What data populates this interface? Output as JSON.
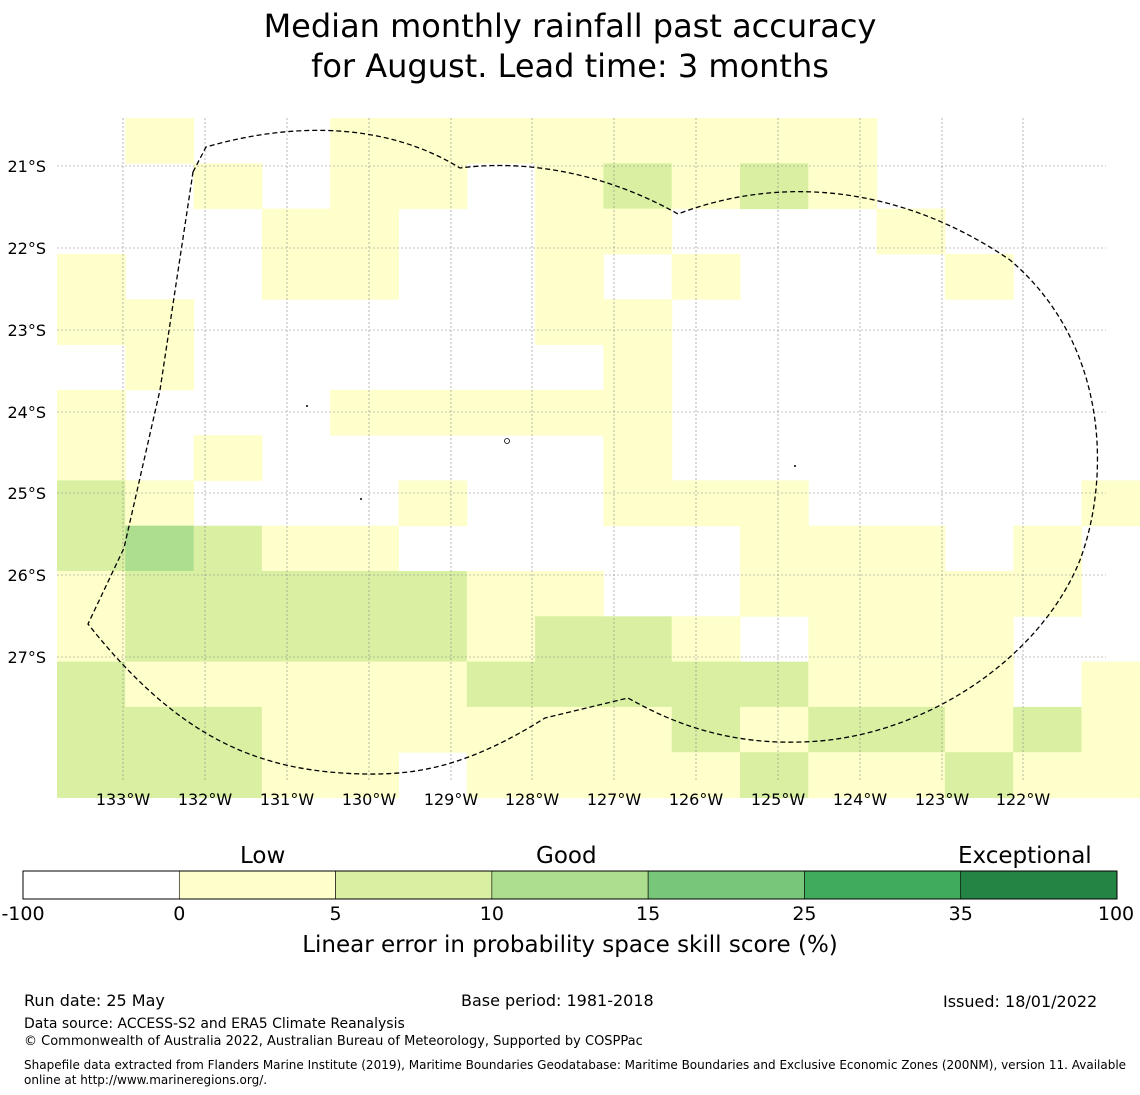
{
  "title": {
    "line1": "Median monthly rainfall past accuracy",
    "line2": "for August. Lead time: 3 months"
  },
  "map": {
    "lon_labels": [
      "133°W",
      "132°W",
      "131°W",
      "130°W",
      "129°W",
      "128°W",
      "127°W",
      "126°W",
      "125°W",
      "124°W",
      "123°W",
      "122°W"
    ],
    "lat_labels": [
      "21°S",
      "22°S",
      "23°S",
      "24°S",
      "25°S",
      "26°S",
      "27°S"
    ],
    "grid_columns": 16,
    "grid_rows": 15,
    "cell_classes_legend": "0 = none/below 0, 1 = 0-5, 2 = 5-10, 3 = 10-15",
    "cells": [
      [
        0,
        1,
        0,
        0,
        1,
        1,
        1,
        1,
        1,
        1,
        1,
        1,
        0,
        0,
        0,
        0
      ],
      [
        0,
        0,
        1,
        0,
        1,
        1,
        0,
        1,
        2,
        1,
        2,
        1,
        0,
        0,
        0,
        0
      ],
      [
        0,
        0,
        0,
        1,
        1,
        0,
        0,
        1,
        1,
        0,
        0,
        0,
        1,
        0,
        0,
        0
      ],
      [
        1,
        0,
        0,
        1,
        1,
        0,
        0,
        1,
        0,
        1,
        0,
        0,
        0,
        1,
        0,
        0
      ],
      [
        1,
        1,
        0,
        0,
        0,
        0,
        0,
        1,
        1,
        0,
        0,
        0,
        0,
        0,
        0,
        0
      ],
      [
        0,
        1,
        0,
        0,
        0,
        0,
        0,
        0,
        1,
        0,
        0,
        0,
        0,
        0,
        0,
        0
      ],
      [
        1,
        0,
        0,
        0,
        1,
        1,
        1,
        1,
        1,
        0,
        0,
        0,
        0,
        0,
        0,
        0
      ],
      [
        1,
        0,
        1,
        0,
        0,
        0,
        0,
        0,
        1,
        0,
        0,
        0,
        0,
        0,
        0,
        0
      ],
      [
        2,
        1,
        0,
        0,
        0,
        1,
        0,
        0,
        1,
        1,
        1,
        0,
        0,
        0,
        0,
        1
      ],
      [
        2,
        3,
        2,
        1,
        1,
        0,
        0,
        0,
        0,
        0,
        1,
        1,
        1,
        0,
        1,
        0
      ],
      [
        1,
        2,
        2,
        2,
        2,
        2,
        1,
        1,
        0,
        0,
        1,
        1,
        1,
        1,
        1,
        0
      ],
      [
        1,
        2,
        2,
        2,
        2,
        2,
        1,
        2,
        2,
        1,
        0,
        1,
        1,
        1,
        0,
        0
      ],
      [
        2,
        1,
        1,
        1,
        1,
        1,
        2,
        2,
        2,
        2,
        2,
        1,
        1,
        1,
        0,
        1
      ],
      [
        2,
        2,
        2,
        1,
        1,
        1,
        1,
        1,
        1,
        2,
        1,
        2,
        2,
        1,
        2,
        1
      ],
      [
        2,
        2,
        2,
        1,
        1,
        0,
        1,
        1,
        1,
        1,
        2,
        1,
        1,
        2,
        1,
        1
      ]
    ]
  },
  "colorbar": {
    "categories": [
      "Low",
      "Good",
      "Exceptional"
    ],
    "ticks": [
      "-100",
      "0",
      "5",
      "10",
      "15",
      "25",
      "35",
      "100"
    ],
    "colors": [
      "#ffffff",
      "#ffffcc",
      "#d9f0a3",
      "#addd8e",
      "#78c679",
      "#41ab5d",
      "#238443"
    ],
    "label": "Linear error in probability space skill score (%)"
  },
  "footer": {
    "run_date": "Run date: 25 May",
    "base_period": "Base period: 1981-2018",
    "issued": "Issued: 18/01/2022",
    "data_source": "Data source: ACCESS-S2 and ERA5 Climate Reanalysis",
    "copyright": "© Commonwealth of Australia 2022, Australian Bureau of Meteorology, Supported by COSPPac",
    "shapefile": "Shapefile data extracted from Flanders Marine Institute (2019), Maritime Boundaries Geodatabase: Maritime Boundaries and Exclusive Economic Zones (200NM), version 11. Available online at http://www.marineregions.org/."
  }
}
